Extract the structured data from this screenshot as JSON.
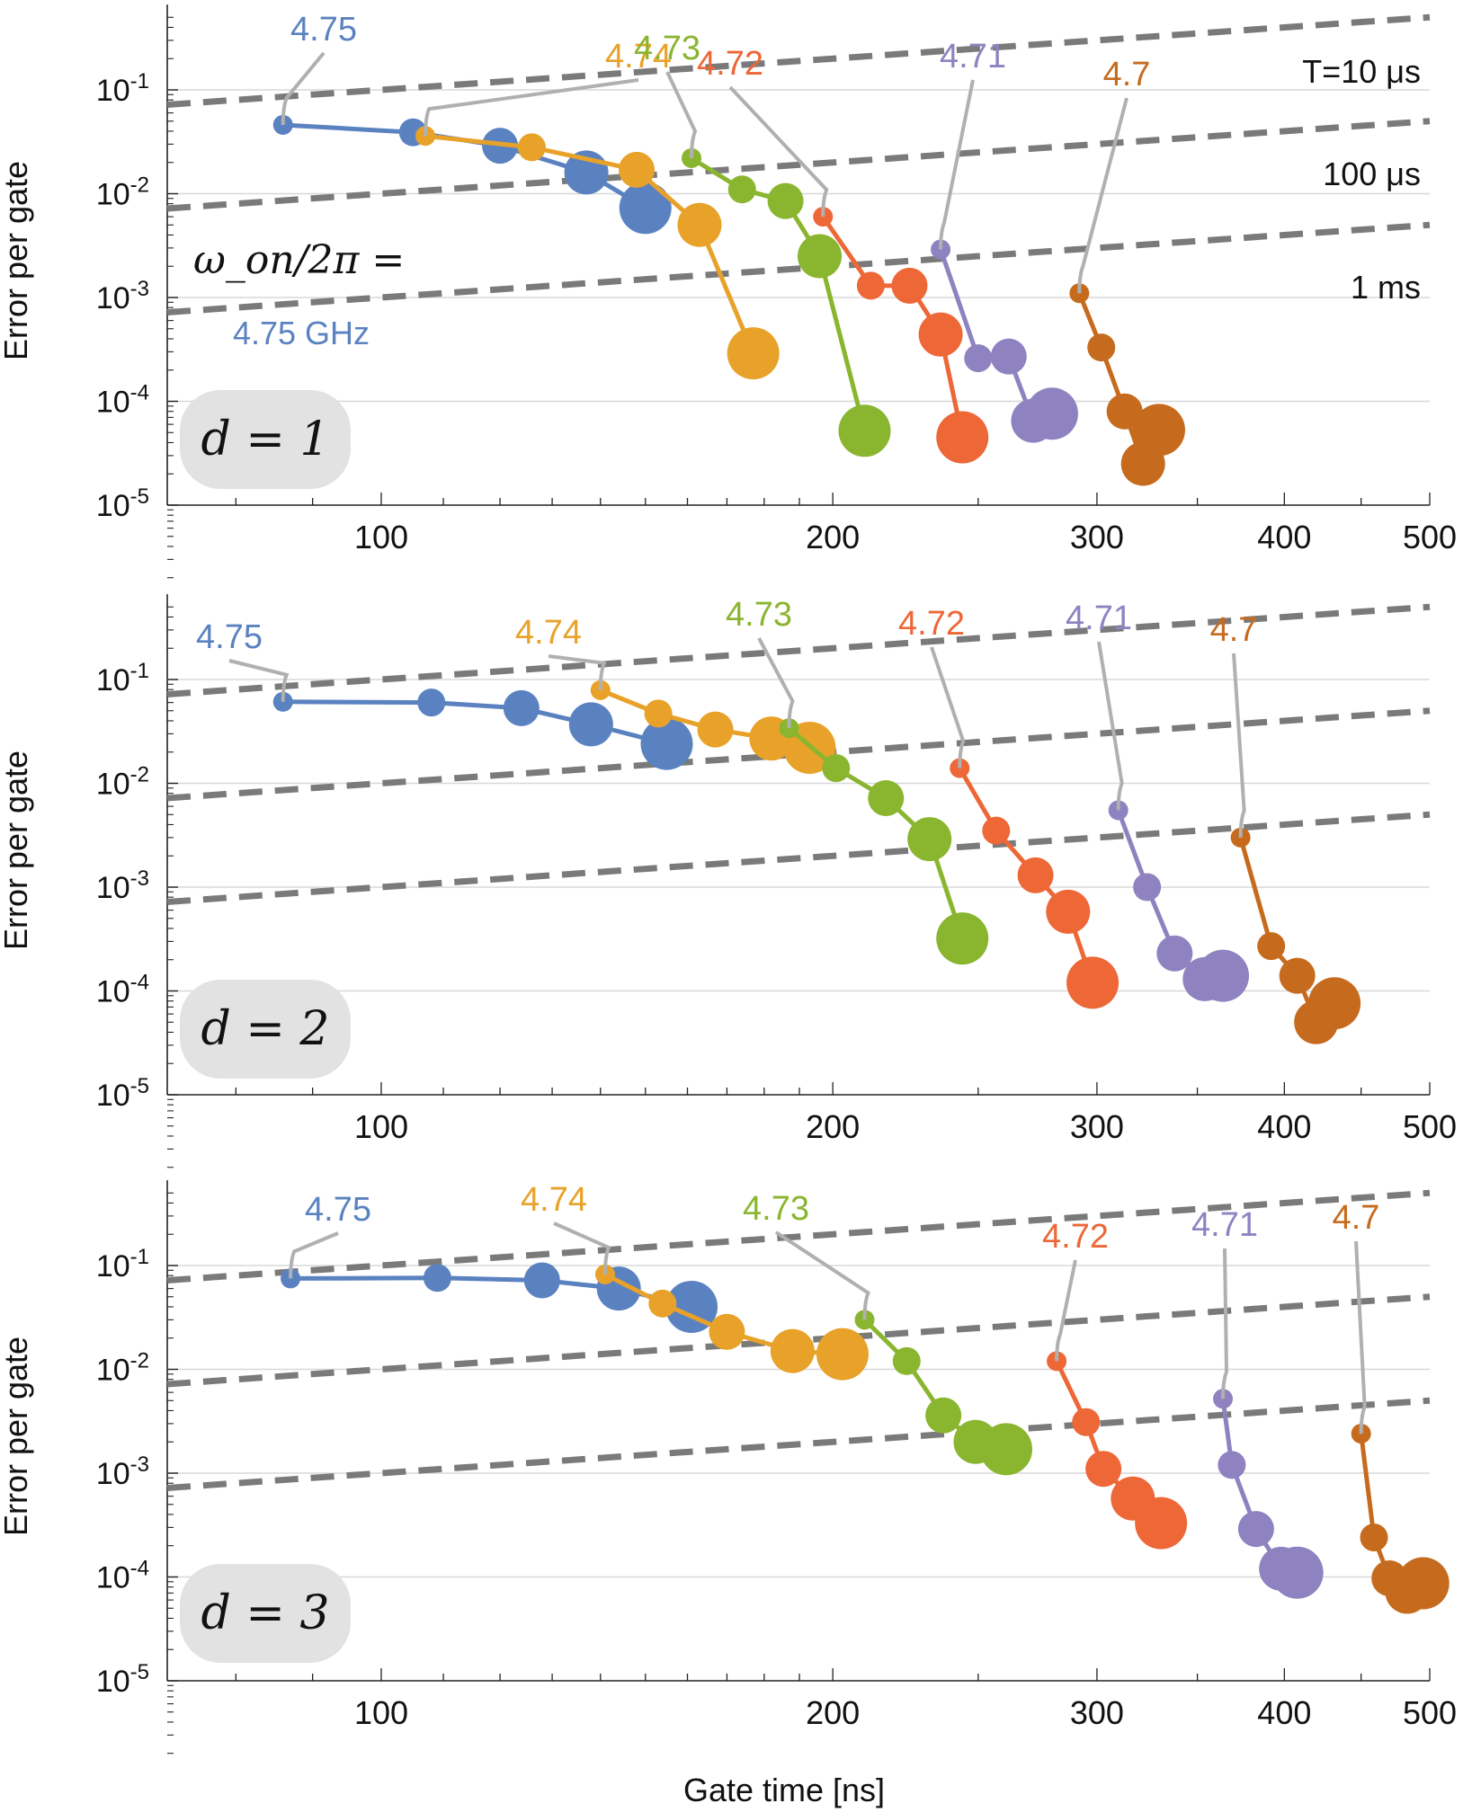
{
  "chart_data": [
    {
      "type": "scatter",
      "panel_label": "d = 1",
      "series": [
        {
          "name": "4.75",
          "color": "#5b82c0",
          "x": [
            86,
            105,
            120,
            137,
            150
          ],
          "y": [
            0.046,
            0.039,
            0.029,
            0.016,
            0.0073
          ]
        },
        {
          "name": "4.74",
          "color": "#e8a229",
          "x": [
            107,
            126,
            148,
            163,
            177
          ],
          "y": [
            0.036,
            0.028,
            0.017,
            0.005,
            0.00029
          ]
        },
        {
          "name": "4.73",
          "color": "#8ab52f",
          "x": [
            161,
            174,
            186,
            196,
            210
          ],
          "y": [
            0.022,
            0.011,
            0.0085,
            0.0025,
            5.2e-05
          ]
        },
        {
          "name": "4.72",
          "color": "#ed6737",
          "x": [
            197,
            212,
            225,
            236,
            244
          ],
          "y": [
            0.006,
            0.0013,
            0.0013,
            0.00044,
            4.5e-05
          ]
        },
        {
          "name": "4.71",
          "color": "#8f82c0",
          "x": [
            236,
            250,
            262,
            272,
            280
          ],
          "y": [
            0.0029,
            0.00026,
            0.00027,
            6.5e-05,
            7.6e-05
          ]
        },
        {
          "name": "4.7",
          "color": "#c66b1e",
          "x": [
            292,
            302,
            313,
            322,
            330
          ],
          "y": [
            0.0011,
            0.00033,
            8e-05,
            2.5e-05,
            5.3e-05
          ]
        }
      ],
      "annotations": {
        "freq_prefix": "ω_on/2π =",
        "freq_first": "4.75 GHz",
        "lines": [
          "T=10 μs",
          "100 μs",
          "1 ms"
        ]
      },
      "xlim": [
        72,
        500
      ],
      "ylim": [
        1e-05,
        0.6
      ],
      "log_x": true,
      "log_y": true
    },
    {
      "type": "scatter",
      "panel_label": "d = 2",
      "series": [
        {
          "name": "4.75",
          "color": "#5b82c0",
          "x": [
            86,
            108,
            124,
            138,
            155
          ],
          "y": [
            0.061,
            0.06,
            0.053,
            0.037,
            0.024
          ]
        },
        {
          "name": "4.74",
          "color": "#e8a229",
          "x": [
            140,
            153,
            167,
            182,
            193
          ],
          "y": [
            0.079,
            0.047,
            0.033,
            0.027,
            0.022
          ]
        },
        {
          "name": "4.73",
          "color": "#8ab52f",
          "x": [
            187,
            201,
            217,
            232,
            244
          ],
          "y": [
            0.034,
            0.014,
            0.0072,
            0.0029,
            0.00032
          ]
        },
        {
          "name": "4.72",
          "color": "#ed6737",
          "x": [
            243,
            257,
            273,
            287,
            298
          ],
          "y": [
            0.014,
            0.0035,
            0.0013,
            0.00058,
            0.00012
          ]
        },
        {
          "name": "4.71",
          "color": "#8f82c0",
          "x": [
            310,
            324,
            338,
            354,
            364
          ],
          "y": [
            0.0055,
            0.001,
            0.00023,
            0.00013,
            0.00014
          ]
        },
        {
          "name": "4.7",
          "color": "#c66b1e",
          "x": [
            374,
            392,
            408,
            420,
            432
          ],
          "y": [
            0.003,
            0.00027,
            0.00014,
            5e-05,
            7.6e-05
          ]
        }
      ],
      "xlim": [
        72,
        500
      ],
      "ylim": [
        1e-05,
        0.6
      ],
      "log_x": true,
      "log_y": true
    },
    {
      "type": "scatter",
      "panel_label": "d = 3",
      "series": [
        {
          "name": "4.75",
          "color": "#5b82c0",
          "x": [
            87,
            109,
            128,
            144,
            161
          ],
          "y": [
            0.075,
            0.076,
            0.072,
            0.06,
            0.04
          ]
        },
        {
          "name": "4.74",
          "color": "#e8a229",
          "x": [
            141,
            154,
            170,
            188,
            203
          ],
          "y": [
            0.082,
            0.043,
            0.023,
            0.015,
            0.014
          ]
        },
        {
          "name": "4.73",
          "color": "#8ab52f",
          "x": [
            210,
            224,
            237,
            249,
            261
          ],
          "y": [
            0.03,
            0.012,
            0.0036,
            0.002,
            0.0017
          ]
        },
        {
          "name": "4.72",
          "color": "#ed6737",
          "x": [
            282,
            295,
            303,
            317,
            331
          ],
          "y": [
            0.012,
            0.0031,
            0.0011,
            0.00057,
            0.00033
          ]
        },
        {
          "name": "4.71",
          "color": "#8f82c0",
          "x": [
            364,
            369,
            383,
            398,
            408
          ],
          "y": [
            0.0052,
            0.0012,
            0.00029,
            0.00012,
            0.00011
          ]
        },
        {
          "name": "4.7",
          "color": "#c66b1e",
          "x": [
            450,
            459,
            470,
            483,
            495
          ],
          "y": [
            0.0024,
            0.00024,
            9.7e-05,
            7.2e-05,
            8.7e-05
          ]
        }
      ],
      "xlim": [
        72,
        500
      ],
      "ylim": [
        1e-05,
        0.6
      ],
      "log_x": true,
      "log_y": true
    }
  ],
  "axes": {
    "ylabel": "Error per gate",
    "xlabel": "Gate time [ns]",
    "xticks": [
      100,
      200,
      300,
      400,
      500
    ],
    "yticks": [
      {
        "base": "10",
        "exp": "-1"
      },
      {
        "base": "10",
        "exp": "-2"
      },
      {
        "base": "10",
        "exp": "-3"
      },
      {
        "base": "10",
        "exp": "-4"
      },
      {
        "base": "10",
        "exp": "-5"
      }
    ]
  },
  "reference_lines": [
    {
      "label": "T=10 μs",
      "T_ns": 10000
    },
    {
      "label": "100 μs",
      "T_ns": 100000
    },
    {
      "label": "1 ms",
      "T_ns": 1000000
    }
  ],
  "style": {
    "dash_color": "#7a7a7a",
    "grid_color": "#d8d8d8",
    "callout_color": "#b0b0b0",
    "badge_bg": "#e2e2e2"
  }
}
